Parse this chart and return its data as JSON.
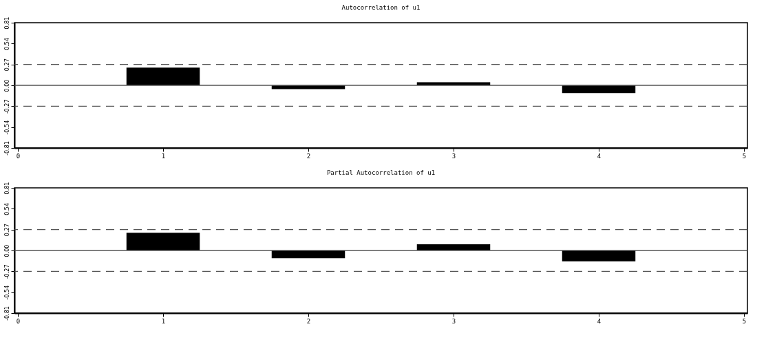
{
  "chart_data": [
    {
      "type": "bar",
      "title": "Autocorrelation of u1",
      "x": [
        1,
        2,
        3,
        4
      ],
      "values": [
        0.23,
        -0.05,
        0.04,
        -0.1
      ],
      "color": "#000000",
      "xlim": [
        0,
        5
      ],
      "xticks": [
        0,
        1,
        2,
        3,
        4,
        5
      ],
      "ylim": [
        -0.81,
        0.81
      ],
      "yticks": [
        {
          "value": -0.81,
          "label": "-0.81"
        },
        {
          "value": -0.54,
          "label": "-0.54"
        },
        {
          "value": -0.27,
          "label": "-0.27"
        },
        {
          "value": 0,
          "label": "0.00"
        },
        {
          "value": 0.27,
          "label": "0.27"
        },
        {
          "value": 0.54,
          "label": "0.54"
        },
        {
          "value": 0.81,
          "label": "0.81"
        }
      ],
      "ref_lines": [
        {
          "axis": "y",
          "value": 0,
          "label": null,
          "color": "#555555",
          "line_style": "solid"
        },
        {
          "axis": "y",
          "value": 0.27,
          "label": null,
          "color": "#555555",
          "line_style": "dashed"
        },
        {
          "axis": "y",
          "value": -0.27,
          "label": null,
          "color": "#555555",
          "line_style": "dashed"
        }
      ]
    },
    {
      "type": "bar",
      "title": "Partial Autocorrelation of u1",
      "x": [
        1,
        2,
        3,
        4
      ],
      "values": [
        0.23,
        -0.1,
        0.08,
        -0.14
      ],
      "color": "#000000",
      "xlim": [
        0,
        5
      ],
      "xticks": [
        0,
        1,
        2,
        3,
        4,
        5
      ],
      "ylim": [
        -0.81,
        0.81
      ],
      "yticks": [
        {
          "value": -0.81,
          "label": "-0.81"
        },
        {
          "value": -0.54,
          "label": "-0.54"
        },
        {
          "value": -0.27,
          "label": "-0.27"
        },
        {
          "value": 0,
          "label": "0.00"
        },
        {
          "value": 0.27,
          "label": "0.27"
        },
        {
          "value": 0.54,
          "label": "0.54"
        },
        {
          "value": 0.81,
          "label": "0.81"
        }
      ],
      "ref_lines": [
        {
          "axis": "y",
          "value": 0,
          "label": null,
          "color": "#555555",
          "line_style": "solid"
        },
        {
          "axis": "y",
          "value": 0.27,
          "label": null,
          "color": "#555555",
          "line_style": "dashed"
        },
        {
          "axis": "y",
          "value": -0.27,
          "label": null,
          "color": "#555555",
          "line_style": "dashed"
        }
      ]
    }
  ]
}
